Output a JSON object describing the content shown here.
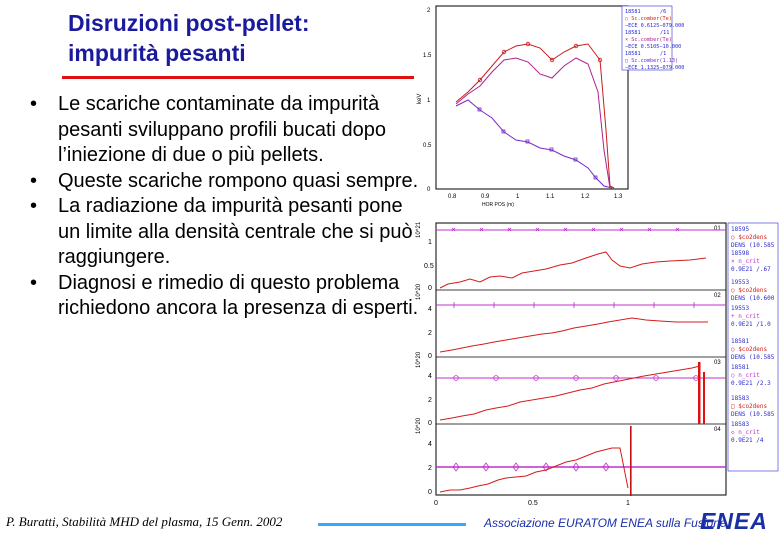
{
  "slide": {
    "title_line1": "Disruzioni post-pellet:",
    "title_line2": "impurità pesanti",
    "bullet_symbol": "•",
    "bullets": [
      "Le scariche contaminate da impurità pesanti sviluppano profili bucati dopo l’iniezione di due o più pellets.",
      "Queste scariche rompono quasi sempre.",
      "La radiazione da impurità pesanti pone un limite alla densità centrale che si può raggiungere.",
      "Diagnosi e rimedio di questo problema richiedono ancora la presenza di esperti."
    ],
    "footer_note": "P. Buratti, Stabilità MHD del plasma, 15 Genn. 2002",
    "organization": "Associazione EURATOM ENEA sulla Fusione",
    "logo": "ENEA"
  },
  "top_plot": {
    "y_ticks": [
      "2",
      "1.5",
      "1",
      "0.5",
      "0"
    ],
    "x_ticks": [
      "0.8",
      "0.9",
      "1",
      "1.1",
      "1.2",
      "1.3"
    ],
    "y_label": "keV",
    "x_label": "HOR POS (m)",
    "legend": [
      {
        "line1": "18581",
        "right": "/6",
        "line2": "○ Sc.comber(Te)",
        "line3": "−ECE 0.6125−079.000"
      },
      {
        "line1": "18581",
        "right": "/11",
        "line2": "× Sc.comber(Te)",
        "line3": "−ECE 0.5105−10.000"
      },
      {
        "line1": "18581",
        "right": "/1",
        "line2": "□ Sc.comber(1.13)",
        "line3": "−ECE 1.1325−079.000"
      }
    ],
    "colors": {
      "series_a": "#cc1b1b",
      "series_b": "#b02090",
      "series_c": "#7a28c8",
      "axes": "#000000"
    }
  },
  "bottom_plot": {
    "x_ticks": [
      "0",
      "0.5",
      "1"
    ],
    "panels": [
      {
        "scale": "10^21",
        "ticks": [
          "1",
          "0.5",
          "0"
        ],
        "label": "01"
      },
      {
        "scale": "10^20",
        "ticks": [
          "4",
          "2",
          "0"
        ],
        "label": "02"
      },
      {
        "scale": "10^20",
        "ticks": [
          "4",
          "2",
          "0"
        ],
        "label": "03"
      },
      {
        "scale": "10^20",
        "ticks": [
          "4",
          "2",
          "0"
        ],
        "label": "04"
      }
    ],
    "legend": [
      {
        "id": "18595",
        "line1": "○ $co2dens",
        "line2": "DENS (10.585"
      },
      {
        "id": "18598",
        "line1": "× n_crit",
        "line2": "0.9E21 /.67"
      },
      {
        "id": "19553",
        "line1": "○ $co2dens",
        "line2": "DENS (10.600"
      },
      {
        "id": "19553",
        "line1": "+ n_crit",
        "line2": "0.9E21 /1.0"
      },
      {
        "id": "18581",
        "line1": "○ $co2dens",
        "line2": "DENS (10.585"
      },
      {
        "id": "18581",
        "line1": "○ n_crit",
        "line2": "0.9E21 /2.3"
      },
      {
        "id": "18583",
        "line1": "□ $co2dens",
        "line2": "DENS (10.585"
      },
      {
        "id": "18583",
        "line1": "◇ n_crit",
        "line2": "0.9E21 /4"
      }
    ],
    "colors": {
      "density": "#d41c1c",
      "n_crit": "#c030c8"
    }
  }
}
